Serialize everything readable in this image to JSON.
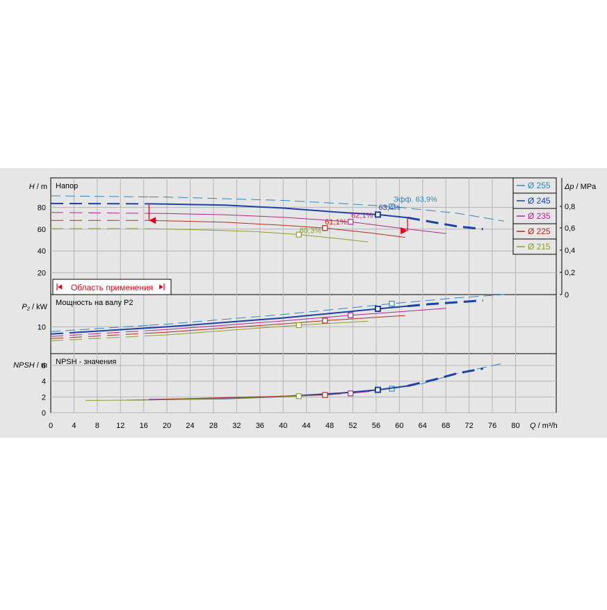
{
  "chart_data": {
    "type": "line",
    "x_axis": {
      "label": "Q / m³/h",
      "range": [
        0,
        87
      ],
      "ticks": [
        0,
        4,
        8,
        12,
        16,
        20,
        24,
        28,
        32,
        36,
        40,
        44,
        48,
        52,
        56,
        60,
        64,
        68,
        72,
        76,
        80
      ]
    },
    "legend": {
      "placement": "top-right",
      "entries": [
        {
          "label": "Ø 255",
          "color": "#2f86b8"
        },
        {
          "label": "Ø 245",
          "color": "#1c3fa8"
        },
        {
          "label": "Ø 235",
          "color": "#b0278e"
        },
        {
          "label": "Ø 225",
          "color": "#b02a22"
        },
        {
          "label": "Ø 215",
          "color": "#8f9d2a"
        }
      ]
    },
    "panels": [
      {
        "id": "head",
        "title": "Напор",
        "ylabel": "H / m",
        "ylim": [
          0,
          107
        ],
        "yticks": [
          20,
          40,
          60,
          80
        ],
        "right_axis": {
          "label": "Δp / MPa",
          "ticks": [
            "0",
            "0,2",
            "0,4",
            "0,6",
            "0,8"
          ]
        },
        "operating_range_label": "Область применения",
        "efficiency_annotations": [
          {
            "text": "Эфф.  63,9%",
            "x": 58.7,
            "y": 80.7,
            "color": "#2f86b8"
          },
          {
            "text": "63,4%",
            "x": 56.3,
            "y": 73.3,
            "color": "#1c3fa8"
          },
          {
            "text": "62,1%",
            "x": 51.6,
            "y": 66.7,
            "color": "#b0278e"
          },
          {
            "text": "61,1%",
            "x": 47.2,
            "y": 61.0,
            "color": "#b02a22"
          },
          {
            "text": "60,3%",
            "x": 42.7,
            "y": 55.0,
            "color": "#8f9d2a"
          }
        ],
        "series": [
          {
            "name": "Ø 255",
            "color": "#2f86b8",
            "dash": "14 7",
            "width": 1,
            "points": [
              [
                0,
                90.5
              ],
              [
                20,
                89.4
              ],
              [
                40,
                86.3
              ],
              [
                50,
                83.5
              ],
              [
                58.7,
                80.7
              ],
              [
                70,
                74.5
              ],
              [
                78,
                67.4
              ]
            ],
            "markers": [
              [
                58.7,
                80.7
              ]
            ]
          },
          {
            "name": "Ø 245",
            "color": "#1c3fa8",
            "dash": "18 9",
            "width": 2,
            "points": [
              [
                0,
                83.5
              ],
              [
                16.9,
                83.2
              ],
              [
                20,
                83.0
              ],
              [
                30,
                82.0
              ],
              [
                40,
                79.3
              ],
              [
                50,
                75.3
              ],
              [
                56.3,
                73.3
              ],
              [
                61.4,
                70.5
              ],
              [
                66,
                66.2
              ],
              [
                70,
                62.5
              ],
              [
                74.4,
                60.0
              ]
            ],
            "solid_range": [
              16.9,
              61.4
            ],
            "markers": [
              [
                56.3,
                73.3
              ]
            ]
          },
          {
            "name": "Ø 235",
            "color": "#b0278e",
            "dash": "18 9",
            "width": 1,
            "points": [
              [
                0,
                75.3
              ],
              [
                20,
                74.3
              ],
              [
                30,
                73.2
              ],
              [
                40,
                70.8
              ],
              [
                51.6,
                66.7
              ],
              [
                60,
                61.0
              ],
              [
                68,
                56.0
              ]
            ],
            "markers": [
              [
                51.6,
                66.7
              ]
            ]
          },
          {
            "name": "Ø 225",
            "color": "#b02a22",
            "dash": "18 9",
            "width": 1,
            "points": [
              [
                0,
                68.0
              ],
              [
                17.0,
                68.0
              ],
              [
                30,
                66.3
              ],
              [
                40,
                63.5
              ],
              [
                47.2,
                61.0
              ],
              [
                55,
                56.5
              ],
              [
                61.0,
                52.5
              ]
            ],
            "markers": [
              [
                47.2,
                61.0
              ]
            ]
          },
          {
            "name": "Ø 215",
            "color": "#8f9d2a",
            "dash": "18 9",
            "width": 1,
            "points": [
              [
                0,
                60.5
              ],
              [
                15,
                60.5
              ],
              [
                25,
                59.5
              ],
              [
                35,
                57.8
              ],
              [
                42.7,
                55.0
              ],
              [
                50,
                51.0
              ],
              [
                54.6,
                48.3
              ]
            ],
            "markers": [
              [
                42.7,
                55.0
              ]
            ]
          }
        ],
        "range_boundary": {
          "color": "#e3001b",
          "left_q": 16.9,
          "right_q": 61.4,
          "left_top_h": 83.2,
          "left_bottom_h": 68.0,
          "right_top_h": 70.5,
          "right_bottom_h": 58.5
        }
      },
      {
        "id": "power",
        "title": "Мощность на валу P2",
        "ylabel": "P₂ / kW",
        "ylim": [
          0,
          22
        ],
        "yticks": [
          10
        ],
        "series": [
          {
            "name": "Ø 255",
            "color": "#2f86b8",
            "dash": "14 7",
            "width": 1,
            "points": [
              [
                0,
                8.2
              ],
              [
                20,
                11.0
              ],
              [
                40,
                14.6
              ],
              [
                58.7,
                18.6
              ],
              [
                70,
                20.8
              ],
              [
                78,
                22.0
              ]
            ],
            "markers": [
              [
                58.7,
                18.6
              ]
            ]
          },
          {
            "name": "Ø 245",
            "color": "#1c3fa8",
            "dash": "18 9",
            "width": 2,
            "points": [
              [
                0,
                7.3
              ],
              [
                20,
                10.0
              ],
              [
                40,
                13.3
              ],
              [
                56.3,
                16.7
              ],
              [
                65,
                18.4
              ],
              [
                74.4,
                19.8
              ]
            ],
            "solid_range": [
              4.5,
              61.4
            ],
            "markers": [
              [
                56.3,
                16.7
              ]
            ]
          },
          {
            "name": "Ø 235",
            "color": "#b0278e",
            "dash": "18 9",
            "width": 1,
            "points": [
              [
                0,
                6.4
              ],
              [
                20,
                9.0
              ],
              [
                40,
                12.2
              ],
              [
                51.6,
                14.3
              ],
              [
                60,
                15.6
              ],
              [
                68,
                16.9
              ]
            ],
            "markers": [
              [
                51.6,
                14.3
              ]
            ]
          },
          {
            "name": "Ø 225",
            "color": "#b02a22",
            "dash": "18 9",
            "width": 1,
            "points": [
              [
                0,
                5.6
              ],
              [
                20,
                8.0
              ],
              [
                40,
                11.1
              ],
              [
                47.2,
                12.3
              ],
              [
                61.0,
                14.2
              ]
            ],
            "markers": [
              [
                47.2,
                12.3
              ]
            ]
          },
          {
            "name": "Ø 215",
            "color": "#8f9d2a",
            "dash": "18 9",
            "width": 1,
            "points": [
              [
                0,
                4.8
              ],
              [
                20,
                7.0
              ],
              [
                42.7,
                10.6
              ],
              [
                54.6,
                12.1
              ]
            ],
            "markers": [
              [
                42.7,
                10.6
              ]
            ]
          }
        ]
      },
      {
        "id": "npsh",
        "title": "NPSH - значения",
        "ylabel": "NPSH / m",
        "ylim": [
          0,
          7.5
        ],
        "yticks": [
          0,
          2,
          4,
          6
        ],
        "series": [
          {
            "name": "Ø 255",
            "color": "#2f86b8",
            "dash": "14 7",
            "width": 1,
            "points": [
              [
                58.7,
                3.05
              ],
              [
                64,
                3.7
              ],
              [
                70,
                5.0
              ],
              [
                78,
                6.3
              ]
            ],
            "markers": [
              [
                58.7,
                3.05
              ]
            ]
          },
          {
            "name": "Ø 245",
            "color": "#1c3fa8",
            "dash": "18 9",
            "width": 2,
            "points": [
              [
                16.9,
                1.65
              ],
              [
                30,
                1.8
              ],
              [
                40,
                2.05
              ],
              [
                50,
                2.5
              ],
              [
                56.3,
                2.9
              ],
              [
                61.4,
                3.4
              ],
              [
                66,
                4.2
              ],
              [
                70,
                5.0
              ],
              [
                74.4,
                5.6
              ]
            ],
            "solid_range": [
              16.9,
              61.4
            ],
            "markers": [
              [
                56.3,
                2.9
              ]
            ]
          },
          {
            "name": "Ø 235",
            "color": "#b0278e",
            "dash": "",
            "width": 1,
            "points": [
              [
                51.6,
                2.45
              ],
              [
                55,
                2.7
              ]
            ],
            "markers": [
              [
                51.6,
                2.45
              ]
            ]
          },
          {
            "name": "Ø 225",
            "color": "#b02a22",
            "dash": "",
            "width": 1,
            "points": [
              [
                13,
                1.6
              ],
              [
                17,
                1.65
              ],
              [
                47.2,
                2.25
              ],
              [
                50,
                2.4
              ]
            ],
            "markers": [
              [
                47.2,
                2.25
              ]
            ]
          },
          {
            "name": "Ø 215",
            "color": "#8f9d2a",
            "dash": "",
            "width": 1,
            "points": [
              [
                6,
                1.55
              ],
              [
                16,
                1.6
              ],
              [
                30,
                1.8
              ],
              [
                42.7,
                2.1
              ],
              [
                46,
                2.2
              ]
            ],
            "markers": [
              [
                42.7,
                2.1
              ]
            ]
          }
        ]
      }
    ]
  }
}
